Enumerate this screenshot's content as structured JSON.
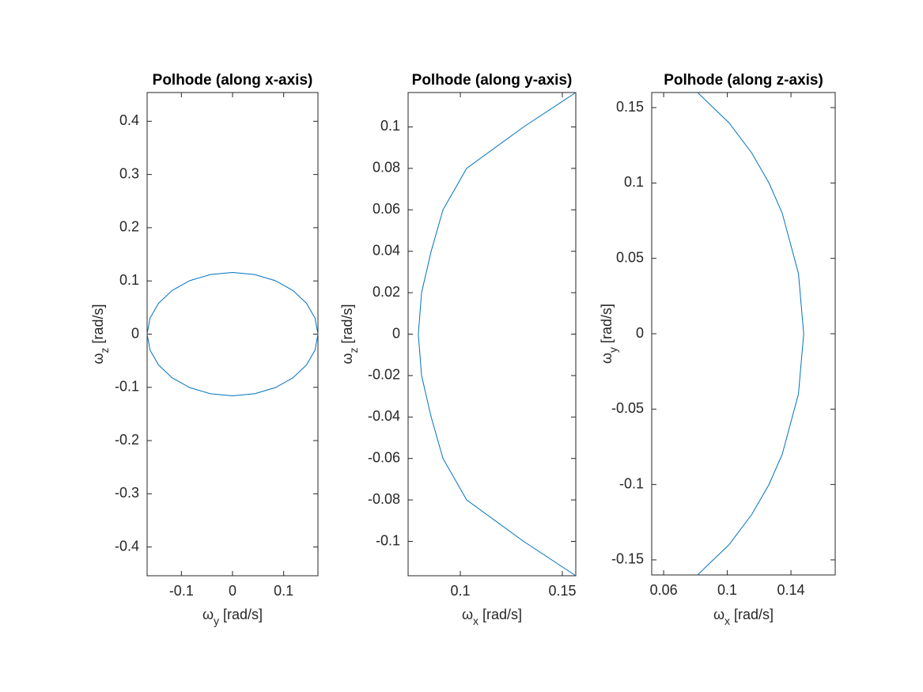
{
  "chart_data": [
    {
      "type": "line",
      "title": "Polhode (along x-axis)",
      "xlabel": {
        "symbol": "ω",
        "subscript": "y",
        "unit": "[rad/s]"
      },
      "ylabel": {
        "symbol": "ω",
        "subscript": "z",
        "unit": "[rad/s]"
      },
      "x": [
        0.167,
        0.1613,
        0.1446,
        0.1181,
        0.0835,
        0.0432,
        0,
        -0.0432,
        -0.0835,
        -0.1181,
        -0.1446,
        -0.1613,
        -0.167,
        -0.1613,
        -0.1446,
        -0.1181,
        -0.0835,
        -0.0432,
        0,
        0.0432,
        0.0835,
        0.1181,
        0.1446,
        0.1613,
        0.167
      ],
      "values": [
        0,
        0.03,
        0.058,
        0.082,
        0.1005,
        0.112,
        0.116,
        0.112,
        0.1005,
        0.082,
        0.058,
        0.03,
        0,
        -0.03,
        -0.058,
        -0.082,
        -0.1005,
        -0.112,
        -0.116,
        -0.112,
        -0.1005,
        -0.082,
        -0.058,
        -0.03,
        0
      ],
      "color": "#0072bd",
      "xlim": [
        -0.167,
        0.167
      ],
      "ylim": [
        -0.454,
        0.454
      ],
      "xticks": [
        -0.1,
        0,
        0.1
      ],
      "yticks": [
        -0.4,
        -0.3,
        -0.2,
        -0.1,
        0,
        0.1,
        0.2,
        0.3,
        0.4
      ]
    },
    {
      "type": "line",
      "title": "Polhode (along y-axis)",
      "xlabel": {
        "symbol": "ω",
        "subscript": "x",
        "unit": "[rad/s]"
      },
      "ylabel": {
        "symbol": "ω",
        "subscript": "z",
        "unit": "[rad/s]"
      },
      "x": [
        0.1566,
        0.131,
        0.1031,
        0.0915,
        0.0857,
        0.081,
        0.0794,
        0.081,
        0.0857,
        0.0915,
        0.1031,
        0.131,
        0.1566
      ],
      "values": [
        -0.1166,
        -0.1,
        -0.08,
        -0.06,
        -0.04,
        -0.02,
        0,
        0.02,
        0.04,
        0.06,
        0.08,
        0.1,
        0.1166
      ],
      "color": "#0072bd",
      "xlim": [
        0.0744,
        0.1566
      ],
      "ylim": [
        -0.1166,
        0.1166
      ],
      "xticks": [
        0.1,
        0.15
      ],
      "yticks": [
        -0.1,
        -0.08,
        -0.06,
        -0.04,
        -0.02,
        0,
        0.02,
        0.04,
        0.06,
        0.08,
        0.1
      ]
    },
    {
      "type": "line",
      "title": "Polhode (along z-axis)",
      "xlabel": {
        "symbol": "ω",
        "subscript": "x",
        "unit": "[rad/s]"
      },
      "ylabel": {
        "symbol": "ω",
        "subscript": "y",
        "unit": "[rad/s]"
      },
      "x": [
        0.0813,
        0.101,
        0.1153,
        0.1262,
        0.1345,
        0.1447,
        0.148,
        0.1447,
        0.1345,
        0.1262,
        0.1153,
        0.101,
        0.0813
      ],
      "values": [
        -0.16,
        -0.14,
        -0.12,
        -0.1,
        -0.08,
        -0.04,
        0,
        0.04,
        0.08,
        0.1,
        0.12,
        0.14,
        0.16
      ],
      "color": "#0072bd",
      "xlim": [
        0.0525,
        0.1678
      ],
      "ylim": [
        -0.16,
        0.16
      ],
      "xticks": [
        0.06,
        0.1,
        0.14
      ],
      "yticks": [
        -0.15,
        -0.1,
        -0.05,
        0,
        0.05,
        0.1,
        0.15
      ]
    }
  ]
}
